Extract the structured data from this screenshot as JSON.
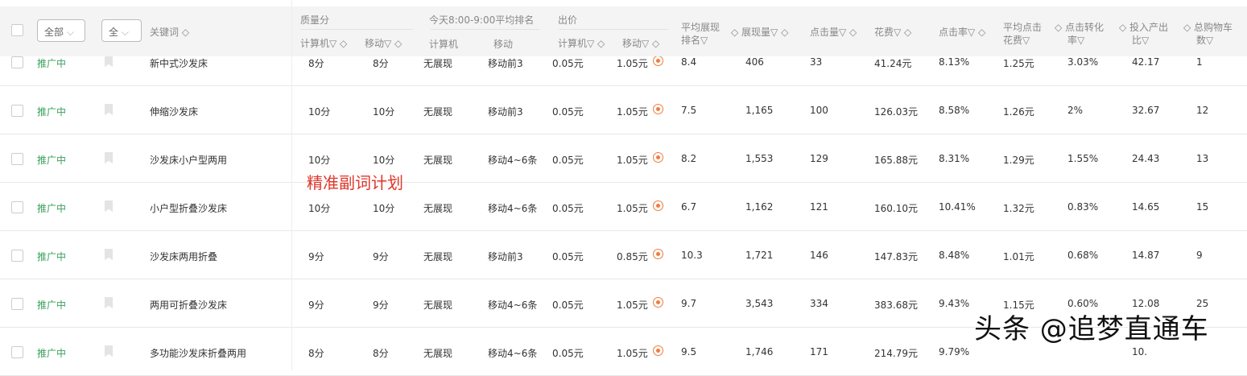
{
  "header": {
    "status_filter": "全部",
    "type_filter": "全",
    "keyword": "关键词 ◇",
    "quality": "质量分",
    "quality_pc": "计算机▽ ◇",
    "quality_mobile": "移动▽ ◇",
    "rank": "今天8:00-9:00平均排名",
    "rank_pc": "计算机",
    "rank_mobile": "移动",
    "bid": "出价",
    "bid_pc": "计算机▽ ◇",
    "bid_mobile": "移动▽ ◇",
    "avg_rank_1": "平均展现",
    "avg_rank_2": "排名▽",
    "impressions": "◇ 展现量▽ ◇",
    "clicks": "点击量▽ ◇",
    "cost": "花费▽ ◇",
    "ctr": "点击率▽ ◇",
    "cpc_1": "平均点击",
    "cpc_2": "花费▽",
    "cvr_1": "◇ 点击转化",
    "cvr_2": "率▽",
    "roi_1": "◇ 投入产出",
    "roi_2": "比▽",
    "cart_1": "◇ 总购物车",
    "cart_2": "数▽"
  },
  "rows": [
    {
      "status": "推广中",
      "keyword": "新中式沙发床",
      "q_pc": "8分",
      "q_m": "8分",
      "r_pc": "无展现",
      "r_m": "移动前3",
      "b_pc": "0.05元",
      "b_m": "1.05元",
      "avg_rank": "8.4",
      "imp": "406",
      "clk": "33",
      "cost": "41.24元",
      "ctr": "8.13%",
      "cpc": "1.25元",
      "cvr": "3.03%",
      "roi": "42.17",
      "cart": "1"
    },
    {
      "status": "推广中",
      "keyword": "伸缩沙发床",
      "q_pc": "10分",
      "q_m": "10分",
      "r_pc": "无展现",
      "r_m": "移动前3",
      "b_pc": "0.05元",
      "b_m": "1.05元",
      "avg_rank": "7.5",
      "imp": "1,165",
      "clk": "100",
      "cost": "126.03元",
      "ctr": "8.58%",
      "cpc": "1.26元",
      "cvr": "2%",
      "roi": "32.67",
      "cart": "12"
    },
    {
      "status": "推广中",
      "keyword": "沙发床小户型两用",
      "q_pc": "10分",
      "q_m": "10分",
      "r_pc": "无展现",
      "r_m": "移动4~6条",
      "b_pc": "0.05元",
      "b_m": "1.05元",
      "avg_rank": "8.2",
      "imp": "1,553",
      "clk": "129",
      "cost": "165.88元",
      "ctr": "8.31%",
      "cpc": "1.29元",
      "cvr": "1.55%",
      "roi": "24.43",
      "cart": "13"
    },
    {
      "status": "推广中",
      "keyword": "小户型折叠沙发床",
      "q_pc": "10分",
      "q_m": "10分",
      "r_pc": "无展现",
      "r_m": "移动4~6条",
      "b_pc": "0.05元",
      "b_m": "1.05元",
      "avg_rank": "6.7",
      "imp": "1,162",
      "clk": "121",
      "cost": "160.10元",
      "ctr": "10.41%",
      "cpc": "1.32元",
      "cvr": "0.83%",
      "roi": "14.65",
      "cart": "15"
    },
    {
      "status": "推广中",
      "keyword": "沙发床两用折叠",
      "q_pc": "9分",
      "q_m": "9分",
      "r_pc": "无展现",
      "r_m": "移动前3",
      "b_pc": "0.05元",
      "b_m": "0.85元",
      "avg_rank": "10.3",
      "imp": "1,721",
      "clk": "146",
      "cost": "147.83元",
      "ctr": "8.48%",
      "cpc": "1.01元",
      "cvr": "0.68%",
      "roi": "14.87",
      "cart": "9"
    },
    {
      "status": "推广中",
      "keyword": "两用可折叠沙发床",
      "q_pc": "9分",
      "q_m": "9分",
      "r_pc": "无展现",
      "r_m": "移动4~6条",
      "b_pc": "0.05元",
      "b_m": "1.05元",
      "avg_rank": "9.7",
      "imp": "3,543",
      "clk": "334",
      "cost": "383.68元",
      "ctr": "9.43%",
      "cpc": "1.15元",
      "cvr": "0.60%",
      "roi": "12.08",
      "cart": "25"
    },
    {
      "status": "推广中",
      "keyword": "多功能沙发床折叠两用",
      "q_pc": "8分",
      "q_m": "8分",
      "r_pc": "无展现",
      "r_m": "移动4~6条",
      "b_pc": "0.05元",
      "b_m": "1.05元",
      "avg_rank": "9.5",
      "imp": "1,746",
      "clk": "171",
      "cost": "214.79元",
      "ctr": "9.79%",
      "cpc": "",
      "cvr": "",
      "roi": "10.",
      "cart": ""
    }
  ],
  "overlay_label": "精准副词计划",
  "watermark": "头条 @追梦直通车",
  "colors": {
    "status": "#3aa15b",
    "bookmark_active": "#9db4f0",
    "bookmark_inactive": "#e4e4e4",
    "overlay": "#e0362a",
    "bid_icon": "#f07c3c"
  }
}
